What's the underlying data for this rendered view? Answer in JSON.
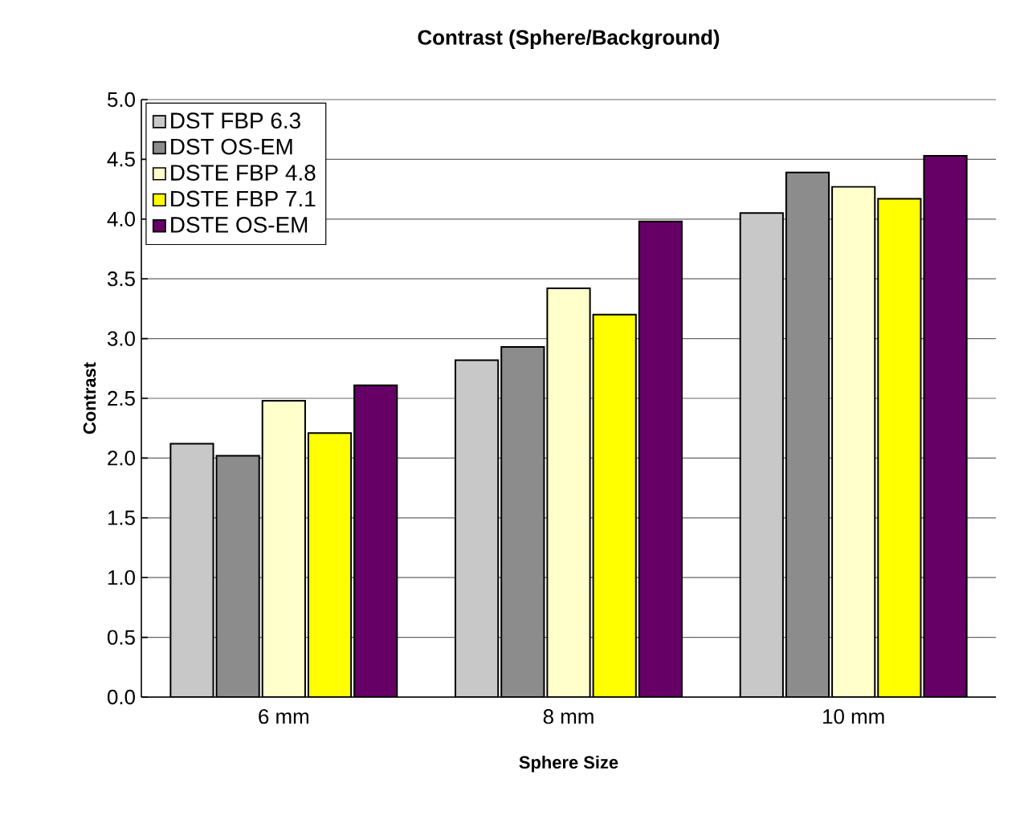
{
  "chart_data": {
    "type": "bar",
    "title": "Contrast (Sphere/Background)",
    "xlabel": "Sphere Size",
    "ylabel": "Contrast",
    "categories": [
      "6 mm",
      "8 mm",
      "10 mm"
    ],
    "series": [
      {
        "name": "DST FBP 6.3",
        "color": "#c8c8c8",
        "values": [
          2.12,
          2.82,
          4.05
        ]
      },
      {
        "name": "DST OS-EM",
        "color": "#8c8c8c",
        "values": [
          2.02,
          2.93,
          4.39
        ]
      },
      {
        "name": "DSTE FBP 4.8",
        "color": "#ffffcc",
        "values": [
          2.48,
          3.42,
          4.27
        ]
      },
      {
        "name": "DSTE FBP 7.1",
        "color": "#ffff00",
        "values": [
          2.21,
          3.2,
          4.17
        ]
      },
      {
        "name": "DSTE OS-EM",
        "color": "#660066",
        "values": [
          2.61,
          3.98,
          4.53
        ]
      }
    ],
    "ylim": [
      0,
      5
    ],
    "yticks": [
      {
        "value": 0,
        "label": "0.0"
      },
      {
        "value": 0.5,
        "label": "0.5"
      },
      {
        "value": 1,
        "label": "1.0"
      },
      {
        "value": 1.5,
        "label": "1.5"
      },
      {
        "value": 2,
        "label": "2.0"
      },
      {
        "value": 2.5,
        "label": "2.5"
      },
      {
        "value": 3,
        "label": "3.0"
      },
      {
        "value": 3.5,
        "label": "3.5"
      },
      {
        "value": 4,
        "label": "4.0"
      },
      {
        "value": 4.5,
        "label": "4.5"
      },
      {
        "value": 5,
        "label": "5.0"
      }
    ],
    "grid": "y",
    "legend": "top left"
  }
}
